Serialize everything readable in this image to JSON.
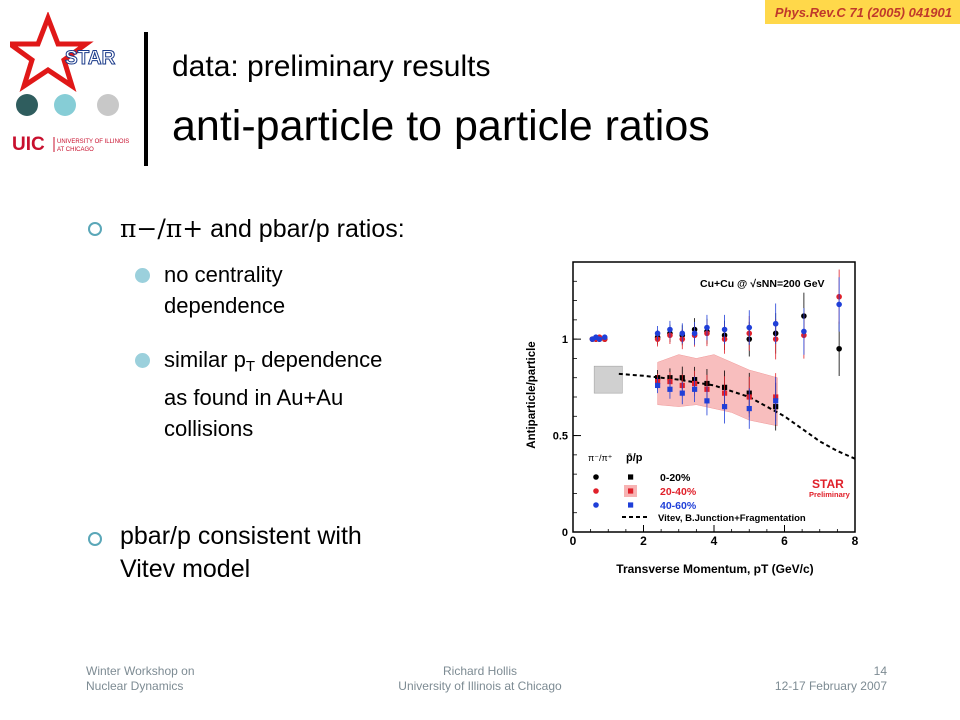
{
  "reference": "Phys.Rev.C 71 (2005) 041901",
  "logo": {
    "star_text": "STAR",
    "uic_text": "UIC",
    "uic_sub1": "UNIVERSITY OF ILLINOIS",
    "uic_sub2": "AT CHICAGO"
  },
  "title": {
    "line1": "data: preliminary results",
    "line2": "anti-particle to particle ratios"
  },
  "bullets": {
    "b1_math": "π−/π+",
    "b1_rest": "and pbar/p ratios:",
    "sub1": [
      "no centrality",
      "dependence"
    ],
    "sub2_part1": "similar p",
    "sub2_subscript": "T",
    "sub2_part2": " dependence",
    "sub2_line2": "as found in Au+Au",
    "sub2_line3": "collisions",
    "b2_line1": "pbar/p consistent with",
    "b2_line2": "Vitev model"
  },
  "footer": {
    "left": [
      "Winter Workshop on",
      "Nuclear Dynamics"
    ],
    "center": [
      "Richard Hollis",
      "University of Illinois at Chicago"
    ],
    "right": [
      "14",
      "12-17 February 2007"
    ]
  },
  "chart_data": {
    "type": "scatter",
    "title": "Cu+Cu @ √sNN=200 GeV",
    "xlabel": "Transverse Momentum, pT (GeV/c)",
    "ylabel": "Antiparticle/particle",
    "xlim": [
      0,
      8
    ],
    "ylim": [
      0,
      1.4
    ],
    "xticks": [
      "0",
      "2",
      "4",
      "6",
      "8"
    ],
    "yticks": [
      "0",
      "0.5",
      "1"
    ],
    "legend": {
      "pion_header": "π⁻/π⁺",
      "proton_header": "p̄/p",
      "entries": [
        "0-20%",
        "20-40%",
        "40-60%"
      ],
      "model": "Vitev, B.Junction+Fragmentation"
    },
    "watermark": [
      "STAR",
      "Preliminary"
    ],
    "series": [
      {
        "name": "0-20%",
        "color": "#000000",
        "pion": [
          [
            0.55,
            1.0
          ],
          [
            0.65,
            1.0
          ],
          [
            0.75,
            1.0
          ],
          [
            0.9,
            1.0
          ],
          [
            2.4,
            1.01
          ],
          [
            2.75,
            1.03
          ],
          [
            3.1,
            1.02
          ],
          [
            3.45,
            1.05
          ],
          [
            3.8,
            1.04
          ],
          [
            4.3,
            1.02
          ],
          [
            5.0,
            1.0
          ],
          [
            5.75,
            1.03
          ],
          [
            6.55,
            1.12
          ],
          [
            7.55,
            0.95
          ]
        ],
        "proton": [
          [
            2.4,
            0.8
          ],
          [
            2.75,
            0.8
          ],
          [
            3.1,
            0.8
          ],
          [
            3.45,
            0.79
          ],
          [
            3.8,
            0.77
          ],
          [
            4.3,
            0.75
          ],
          [
            5.0,
            0.72
          ],
          [
            5.75,
            0.65
          ]
        ]
      },
      {
        "name": "20-40%",
        "color": "#e0202a",
        "pion": [
          [
            0.55,
            1.0
          ],
          [
            0.65,
            1.0
          ],
          [
            0.75,
            1.01
          ],
          [
            0.9,
            1.0
          ],
          [
            2.4,
            1.0
          ],
          [
            2.75,
            1.02
          ],
          [
            3.1,
            1.0
          ],
          [
            3.45,
            1.02
          ],
          [
            3.8,
            1.03
          ],
          [
            4.3,
            1.0
          ],
          [
            5.0,
            1.03
          ],
          [
            5.75,
            1.0
          ],
          [
            6.55,
            1.02
          ],
          [
            7.55,
            1.22
          ]
        ],
        "proton": [
          [
            2.4,
            0.78
          ],
          [
            2.75,
            0.78
          ],
          [
            3.1,
            0.76
          ],
          [
            3.45,
            0.77
          ],
          [
            3.8,
            0.74
          ],
          [
            4.3,
            0.72
          ],
          [
            5.0,
            0.7
          ],
          [
            5.75,
            0.7
          ]
        ]
      },
      {
        "name": "40-60%",
        "color": "#1f3fd8",
        "pion": [
          [
            0.55,
            1.0
          ],
          [
            0.65,
            1.01
          ],
          [
            0.75,
            1.0
          ],
          [
            0.9,
            1.01
          ],
          [
            2.4,
            1.03
          ],
          [
            2.75,
            1.05
          ],
          [
            3.1,
            1.03
          ],
          [
            3.45,
            1.03
          ],
          [
            3.8,
            1.06
          ],
          [
            4.3,
            1.05
          ],
          [
            5.0,
            1.06
          ],
          [
            5.75,
            1.08
          ],
          [
            6.55,
            1.04
          ],
          [
            7.55,
            1.18
          ]
        ],
        "proton": [
          [
            2.4,
            0.76
          ],
          [
            2.75,
            0.74
          ],
          [
            3.1,
            0.72
          ],
          [
            3.45,
            0.74
          ],
          [
            3.8,
            0.68
          ],
          [
            4.3,
            0.65
          ],
          [
            5.0,
            0.64
          ],
          [
            5.75,
            0.68
          ]
        ]
      }
    ],
    "model_curve": [
      [
        1.3,
        0.82
      ],
      [
        2.0,
        0.81
      ],
      [
        3.0,
        0.79
      ],
      [
        4.0,
        0.76
      ],
      [
        5.0,
        0.7
      ],
      [
        6.0,
        0.6
      ],
      [
        7.0,
        0.47
      ],
      [
        7.5,
        0.42
      ],
      [
        8.0,
        0.38
      ]
    ]
  }
}
